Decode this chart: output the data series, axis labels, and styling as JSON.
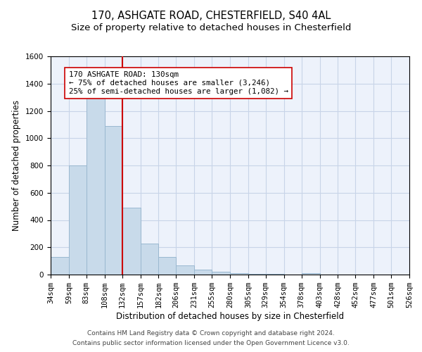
{
  "title1": "170, ASHGATE ROAD, CHESTERFIELD, S40 4AL",
  "title2": "Size of property relative to detached houses in Chesterfield",
  "xlabel": "Distribution of detached houses by size in Chesterfield",
  "ylabel": "Number of detached properties",
  "footnote1": "Contains HM Land Registry data © Crown copyright and database right 2024.",
  "footnote2": "Contains public sector information licensed under the Open Government Licence v3.0.",
  "bar_edges": [
    34,
    59,
    83,
    108,
    132,
    157,
    182,
    206,
    231,
    255,
    280,
    305,
    329,
    354,
    378,
    403,
    428,
    452,
    477,
    501,
    526
  ],
  "bar_heights": [
    130,
    800,
    1300,
    1090,
    490,
    225,
    130,
    65,
    35,
    20,
    10,
    5,
    5,
    0,
    10,
    0,
    0,
    0,
    0,
    0
  ],
  "bar_color": "#c8daea",
  "bar_edge_color": "#9ab8d0",
  "vline_x": 132,
  "vline_color": "#cc0000",
  "annot_line1": "170 ASHGATE ROAD: 130sqm",
  "annot_line2": "← 75% of detached houses are smaller (3,246)",
  "annot_line3": "25% of semi-detached houses are larger (1,082) →",
  "ylim": [
    0,
    1600
  ],
  "yticks": [
    0,
    200,
    400,
    600,
    800,
    1000,
    1200,
    1400,
    1600
  ],
  "grid_color": "#c8d4e8",
  "bg_color": "#edf2fb",
  "title1_fontsize": 10.5,
  "title2_fontsize": 9.5,
  "tick_fontsize": 7.5,
  "label_fontsize": 8.5,
  "annot_fontsize": 7.8,
  "footnote_fontsize": 6.5
}
